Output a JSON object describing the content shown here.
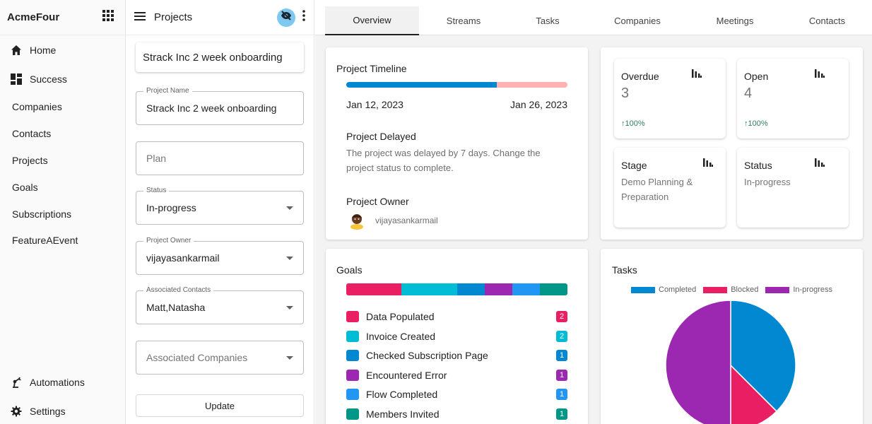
{
  "app": {
    "name": "AcmeFour"
  },
  "sidebar": {
    "items": [
      {
        "label": "Home",
        "icon": "home-icon"
      },
      {
        "label": "Success",
        "icon": "dashboard-icon"
      },
      {
        "label": "Companies"
      },
      {
        "label": "Contacts"
      },
      {
        "label": "Projects"
      },
      {
        "label": "Goals"
      },
      {
        "label": "Subscriptions"
      },
      {
        "label": "FeatureAEvent"
      }
    ],
    "bottom": [
      {
        "label": "Automations",
        "icon": "robot-arm-icon"
      },
      {
        "label": "Settings",
        "icon": "gear-icon"
      }
    ]
  },
  "panel": {
    "title": "Projects",
    "project_title": "Strack Inc 2 week onboarding",
    "fields": {
      "project_name": {
        "label": "Project Name",
        "value": "Strack Inc 2 week onboarding"
      },
      "plan": {
        "placeholder": "Plan"
      },
      "status": {
        "label": "Status",
        "value": "In-progress"
      },
      "owner": {
        "label": "Project Owner",
        "value": "vijayasankarmail"
      },
      "contacts": {
        "label": "Associated Contacts",
        "value": "Matt,Natasha"
      },
      "companies": {
        "placeholder": "Associated Companies"
      }
    },
    "update_label": "Update"
  },
  "tabs": [
    {
      "label": "Overview",
      "active": true
    },
    {
      "label": "Streams"
    },
    {
      "label": "Tasks"
    },
    {
      "label": "Companies"
    },
    {
      "label": "Meetings"
    },
    {
      "label": "Contacts"
    }
  ],
  "timeline": {
    "title": "Project Timeline",
    "start": "Jan 12, 2023",
    "end": "Jan 26, 2023",
    "progress": 0.68,
    "progress_color": "#0288d1",
    "remaining_color": "#ffb3b0",
    "delay_title": "Project Delayed",
    "delay_text": "The project was delayed by 7 days. Change the project status to complete.",
    "owner_title": "Project Owner",
    "owner_name": "vijayasankarmail"
  },
  "stats": {
    "overdue": {
      "title": "Overdue",
      "value": "3",
      "trend": "↑100%"
    },
    "open": {
      "title": "Open",
      "value": "4",
      "trend": "↑100%"
    },
    "stage": {
      "title": "Stage",
      "value": "Demo Planning & Preparation"
    },
    "status": {
      "title": "Status",
      "value": "In-progress"
    }
  },
  "goals": {
    "title": "Goals",
    "items": [
      {
        "label": "Data Populated",
        "count": "2",
        "color": "#e91e63"
      },
      {
        "label": "Invoice Created",
        "count": "2",
        "color": "#00bcd4"
      },
      {
        "label": "Checked Subscription Page",
        "count": "1",
        "color": "#0288d1"
      },
      {
        "label": "Encountered Error",
        "count": "1",
        "color": "#9c27b0"
      },
      {
        "label": "Flow Completed",
        "count": "1",
        "color": "#2196f3"
      },
      {
        "label": "Members Invited",
        "count": "1",
        "color": "#009688"
      }
    ]
  },
  "tasks": {
    "title": "Tasks",
    "legend": [
      {
        "label": "Completed",
        "color": "#0288d1"
      },
      {
        "label": "Blocked",
        "color": "#e91e63"
      },
      {
        "label": "In-progress",
        "color": "#9c27b0"
      }
    ]
  },
  "chart_data": {
    "type": "pie",
    "title": "Tasks",
    "categories": [
      "Completed",
      "Blocked",
      "In-progress"
    ],
    "values": [
      3,
      1,
      4
    ],
    "colors": [
      "#0288d1",
      "#e91e63",
      "#9c27b0"
    ],
    "legend": "top"
  }
}
